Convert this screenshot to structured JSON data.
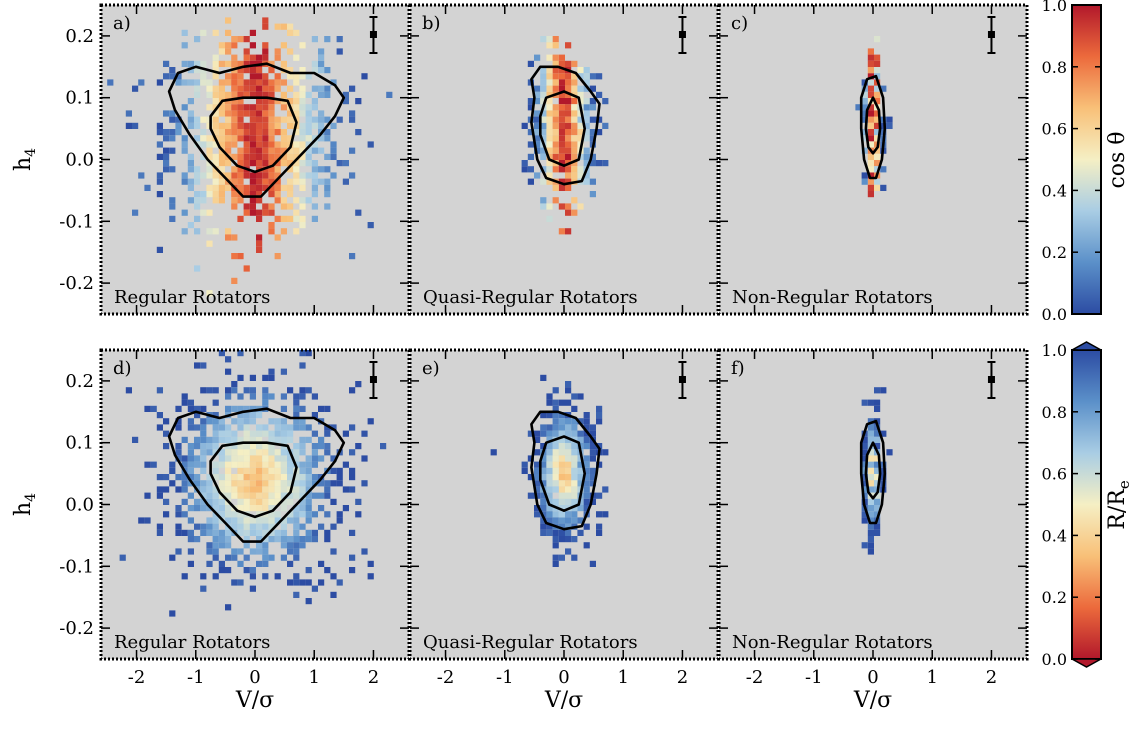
{
  "figure": {
    "top_colorbar": {
      "label": "cos θ",
      "ticks": [
        "0.0",
        "0.2",
        "0.4",
        "0.6",
        "0.8",
        "1.0"
      ],
      "colors": [
        "#2c4ca3",
        "#5b90c9",
        "#a9cde4",
        "#f5efc4",
        "#f8c078",
        "#ec6a3c",
        "#b2182b"
      ]
    },
    "bottom_colorbar": {
      "label": "R/Re",
      "ticks": [
        "0.0",
        "0.2",
        "0.4",
        "0.6",
        "0.8",
        "1.0"
      ],
      "colors": [
        "#b2182b",
        "#ec6a3c",
        "#f8c078",
        "#f5efc4",
        "#a9cde4",
        "#5b90c9",
        "#2c4ca3"
      ]
    },
    "background_color": "#d3d3d3"
  },
  "chart_data": [
    {
      "type": "heatmap",
      "panel_label": "a)",
      "caption": "Regular Rotators",
      "xlabel": "V/σ",
      "ylabel": "h4",
      "xlim": [
        -2.6,
        2.6
      ],
      "ylim": [
        -0.25,
        0.25
      ],
      "xticks": [
        "-2",
        "-1",
        "0",
        "1",
        "2"
      ],
      "yticks": [
        "-0.2",
        "-0.1",
        "0.0",
        "0.1",
        "0.2"
      ],
      "color_quantity": "cos θ",
      "spread_x": 1.3,
      "spread_y": 0.075,
      "center_y": 0.04,
      "contours": [
        [
          [
            -1.45,
            0.11
          ],
          [
            -1.3,
            0.14
          ],
          [
            -1.0,
            0.15
          ],
          [
            -0.6,
            0.14
          ],
          [
            -0.2,
            0.15
          ],
          [
            0.2,
            0.155
          ],
          [
            0.6,
            0.14
          ],
          [
            1.0,
            0.14
          ],
          [
            1.35,
            0.12
          ],
          [
            1.5,
            0.1
          ],
          [
            1.35,
            0.07
          ],
          [
            1.1,
            0.04
          ],
          [
            0.7,
            0.0
          ],
          [
            0.4,
            -0.03
          ],
          [
            0.1,
            -0.06
          ],
          [
            -0.2,
            -0.06
          ],
          [
            -0.5,
            -0.03
          ],
          [
            -0.8,
            0.0
          ],
          [
            -1.1,
            0.04
          ],
          [
            -1.35,
            0.08
          ]
        ],
        [
          [
            -0.75,
            0.07
          ],
          [
            -0.55,
            0.095
          ],
          [
            -0.2,
            0.1
          ],
          [
            0.2,
            0.1
          ],
          [
            0.55,
            0.095
          ],
          [
            0.7,
            0.06
          ],
          [
            0.6,
            0.02
          ],
          [
            0.3,
            -0.01
          ],
          [
            0.0,
            -0.02
          ],
          [
            -0.3,
            -0.01
          ],
          [
            -0.6,
            0.02
          ],
          [
            -0.75,
            0.05
          ]
        ]
      ]
    },
    {
      "type": "heatmap",
      "panel_label": "b)",
      "caption": "Quasi-Regular Rotators",
      "xlabel": "V/σ",
      "ylabel": "h4",
      "xlim": [
        -2.6,
        2.6
      ],
      "ylim": [
        -0.25,
        0.25
      ],
      "xticks": [
        "-2",
        "-1",
        "0",
        "1",
        "2"
      ],
      "yticks": [
        "-0.2",
        "-0.1",
        "0.0",
        "0.1",
        "0.2"
      ],
      "color_quantity": "cos θ",
      "spread_x": 0.45,
      "spread_y": 0.05,
      "center_y": 0.05,
      "contours": [
        [
          [
            -0.55,
            0.13
          ],
          [
            -0.4,
            0.15
          ],
          [
            -0.1,
            0.15
          ],
          [
            0.2,
            0.14
          ],
          [
            0.45,
            0.11
          ],
          [
            0.6,
            0.09
          ],
          [
            0.55,
            0.05
          ],
          [
            0.45,
            0.0
          ],
          [
            0.3,
            -0.035
          ],
          [
            0.0,
            -0.04
          ],
          [
            -0.3,
            -0.03
          ],
          [
            -0.45,
            0.0
          ],
          [
            -0.55,
            0.06
          ],
          [
            -0.5,
            0.1
          ]
        ],
        [
          [
            -0.4,
            0.07
          ],
          [
            -0.3,
            0.1
          ],
          [
            0.0,
            0.11
          ],
          [
            0.25,
            0.1
          ],
          [
            0.35,
            0.05
          ],
          [
            0.25,
            0.0
          ],
          [
            0.0,
            -0.01
          ],
          [
            -0.25,
            0.0
          ],
          [
            -0.4,
            0.04
          ]
        ]
      ]
    },
    {
      "type": "heatmap",
      "panel_label": "c)",
      "caption": "Non-Regular Rotators",
      "xlabel": "V/σ",
      "ylabel": "h4",
      "xlim": [
        -2.6,
        2.6
      ],
      "ylim": [
        -0.25,
        0.25
      ],
      "xticks": [
        "-2",
        "-1",
        "0",
        "1",
        "2"
      ],
      "yticks": [
        "-0.2",
        "-0.1",
        "0.0",
        "0.1",
        "0.2"
      ],
      "color_quantity": "cos θ",
      "spread_x": 0.12,
      "spread_y": 0.045,
      "center_y": 0.05,
      "contours": [
        [
          [
            -0.2,
            0.1
          ],
          [
            -0.1,
            0.13
          ],
          [
            0.05,
            0.135
          ],
          [
            0.17,
            0.1
          ],
          [
            0.2,
            0.05
          ],
          [
            0.15,
            0.0
          ],
          [
            0.05,
            -0.03
          ],
          [
            -0.05,
            -0.03
          ],
          [
            -0.15,
            0.0
          ],
          [
            -0.2,
            0.05
          ]
        ],
        [
          [
            -0.1,
            0.08
          ],
          [
            0.0,
            0.1
          ],
          [
            0.1,
            0.08
          ],
          [
            0.12,
            0.05
          ],
          [
            0.08,
            0.02
          ],
          [
            0.0,
            0.01
          ],
          [
            -0.08,
            0.02
          ],
          [
            -0.12,
            0.05
          ]
        ]
      ]
    },
    {
      "type": "heatmap",
      "panel_label": "d)",
      "caption": "Regular Rotators",
      "xlabel": "V/σ",
      "ylabel": "h4",
      "xlim": [
        -2.6,
        2.6
      ],
      "ylim": [
        -0.25,
        0.25
      ],
      "xticks": [
        "-2",
        "-1",
        "0",
        "1",
        "2"
      ],
      "yticks": [
        "-0.2",
        "-0.1",
        "0.0",
        "0.1",
        "0.2"
      ],
      "color_quantity": "R/Re",
      "spread_x": 1.3,
      "spread_y": 0.075,
      "center_y": 0.04,
      "contours": [
        [
          [
            -1.45,
            0.11
          ],
          [
            -1.3,
            0.14
          ],
          [
            -1.0,
            0.15
          ],
          [
            -0.6,
            0.14
          ],
          [
            -0.2,
            0.15
          ],
          [
            0.2,
            0.155
          ],
          [
            0.6,
            0.14
          ],
          [
            1.0,
            0.14
          ],
          [
            1.35,
            0.12
          ],
          [
            1.5,
            0.1
          ],
          [
            1.35,
            0.07
          ],
          [
            1.1,
            0.04
          ],
          [
            0.7,
            0.0
          ],
          [
            0.4,
            -0.03
          ],
          [
            0.1,
            -0.06
          ],
          [
            -0.2,
            -0.06
          ],
          [
            -0.5,
            -0.03
          ],
          [
            -0.8,
            0.0
          ],
          [
            -1.1,
            0.04
          ],
          [
            -1.35,
            0.08
          ]
        ],
        [
          [
            -0.75,
            0.07
          ],
          [
            -0.55,
            0.095
          ],
          [
            -0.2,
            0.1
          ],
          [
            0.2,
            0.1
          ],
          [
            0.55,
            0.095
          ],
          [
            0.7,
            0.06
          ],
          [
            0.6,
            0.02
          ],
          [
            0.3,
            -0.01
          ],
          [
            0.0,
            -0.02
          ],
          [
            -0.3,
            -0.01
          ],
          [
            -0.6,
            0.02
          ],
          [
            -0.75,
            0.05
          ]
        ]
      ]
    },
    {
      "type": "heatmap",
      "panel_label": "e)",
      "caption": "Quasi-Regular Rotators",
      "xlabel": "V/σ",
      "ylabel": "h4",
      "xlim": [
        -2.6,
        2.6
      ],
      "ylim": [
        -0.25,
        0.25
      ],
      "xticks": [
        "-2",
        "-1",
        "0",
        "1",
        "2"
      ],
      "yticks": [
        "-0.2",
        "-0.1",
        "0.0",
        "0.1",
        "0.2"
      ],
      "color_quantity": "R/Re",
      "spread_x": 0.45,
      "spread_y": 0.05,
      "center_y": 0.05,
      "contours": [
        [
          [
            -0.55,
            0.13
          ],
          [
            -0.4,
            0.15
          ],
          [
            -0.1,
            0.15
          ],
          [
            0.2,
            0.14
          ],
          [
            0.45,
            0.11
          ],
          [
            0.6,
            0.09
          ],
          [
            0.55,
            0.05
          ],
          [
            0.45,
            0.0
          ],
          [
            0.3,
            -0.035
          ],
          [
            0.0,
            -0.04
          ],
          [
            -0.3,
            -0.03
          ],
          [
            -0.45,
            0.0
          ],
          [
            -0.55,
            0.06
          ],
          [
            -0.5,
            0.1
          ]
        ],
        [
          [
            -0.4,
            0.07
          ],
          [
            -0.3,
            0.1
          ],
          [
            0.0,
            0.11
          ],
          [
            0.25,
            0.1
          ],
          [
            0.35,
            0.05
          ],
          [
            0.25,
            0.0
          ],
          [
            0.0,
            -0.01
          ],
          [
            -0.25,
            0.0
          ],
          [
            -0.4,
            0.04
          ]
        ]
      ]
    },
    {
      "type": "heatmap",
      "panel_label": "f)",
      "caption": "Non-Regular Rotators",
      "xlabel": "V/σ",
      "ylabel": "h4",
      "xlim": [
        -2.6,
        2.6
      ],
      "ylim": [
        -0.25,
        0.25
      ],
      "xticks": [
        "-2",
        "-1",
        "0",
        "1",
        "2"
      ],
      "yticks": [
        "-0.2",
        "-0.1",
        "0.0",
        "0.1",
        "0.2"
      ],
      "color_quantity": "R/Re",
      "spread_x": 0.12,
      "spread_y": 0.045,
      "center_y": 0.05,
      "contours": [
        [
          [
            -0.2,
            0.1
          ],
          [
            -0.1,
            0.13
          ],
          [
            0.05,
            0.135
          ],
          [
            0.17,
            0.1
          ],
          [
            0.2,
            0.05
          ],
          [
            0.15,
            0.0
          ],
          [
            0.05,
            -0.03
          ],
          [
            -0.05,
            -0.03
          ],
          [
            -0.15,
            0.0
          ],
          [
            -0.2,
            0.05
          ]
        ],
        [
          [
            -0.1,
            0.08
          ],
          [
            0.0,
            0.1
          ],
          [
            0.1,
            0.08
          ],
          [
            0.12,
            0.05
          ],
          [
            0.08,
            0.02
          ],
          [
            0.0,
            0.01
          ],
          [
            -0.08,
            0.02
          ],
          [
            -0.12,
            0.05
          ]
        ]
      ]
    }
  ]
}
